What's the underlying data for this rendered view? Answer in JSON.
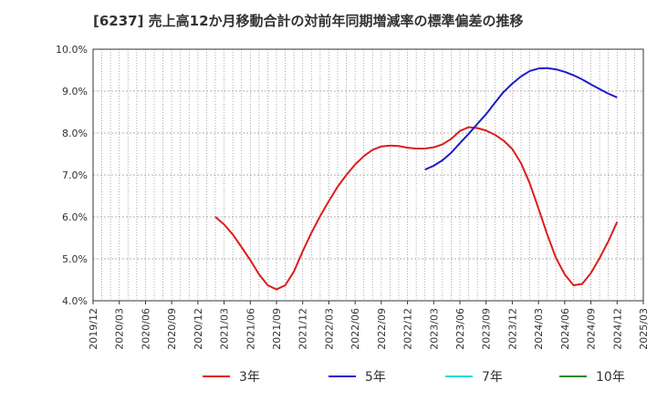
{
  "chart_data": {
    "type": "line",
    "title": "[6237]  売上高12か月移動合計の対前年同期増減率の標準偏差の推移",
    "xlabel": "",
    "ylabel": "",
    "x_ticks": [
      "2019/12",
      "2020/03",
      "2020/06",
      "2020/09",
      "2020/12",
      "2021/03",
      "2021/06",
      "2021/09",
      "2021/12",
      "2022/03",
      "2022/06",
      "2022/09",
      "2022/12",
      "2023/03",
      "2023/06",
      "2023/09",
      "2023/12",
      "2024/03",
      "2024/06",
      "2024/09",
      "2024/12",
      "2025/03"
    ],
    "y_ticks": [
      "4.0%",
      "5.0%",
      "6.0%",
      "7.0%",
      "8.0%",
      "9.0%",
      "10.0%"
    ],
    "ylim": [
      4.0,
      10.0
    ],
    "grid": true,
    "legend_position": "bottom",
    "series": [
      {
        "name": "3年",
        "color": "#dd1c1c",
        "points": [
          [
            "2021/02",
            6.0
          ],
          [
            "2021/03",
            5.82
          ],
          [
            "2021/04",
            5.58
          ],
          [
            "2021/05",
            5.28
          ],
          [
            "2021/06",
            4.97
          ],
          [
            "2021/07",
            4.63
          ],
          [
            "2021/08",
            4.37
          ],
          [
            "2021/09",
            4.27
          ],
          [
            "2021/10",
            4.37
          ],
          [
            "2021/11",
            4.7
          ],
          [
            "2021/12",
            5.18
          ],
          [
            "2022/01",
            5.62
          ],
          [
            "2022/02",
            6.02
          ],
          [
            "2022/03",
            6.38
          ],
          [
            "2022/04",
            6.72
          ],
          [
            "2022/05",
            7.0
          ],
          [
            "2022/06",
            7.25
          ],
          [
            "2022/07",
            7.45
          ],
          [
            "2022/08",
            7.6
          ],
          [
            "2022/09",
            7.68
          ],
          [
            "2022/10",
            7.7
          ],
          [
            "2022/11",
            7.69
          ],
          [
            "2022/12",
            7.65
          ],
          [
            "2023/01",
            7.63
          ],
          [
            "2023/02",
            7.63
          ],
          [
            "2023/03",
            7.66
          ],
          [
            "2023/04",
            7.73
          ],
          [
            "2023/05",
            7.86
          ],
          [
            "2023/06",
            8.05
          ],
          [
            "2023/07",
            8.14
          ],
          [
            "2023/08",
            8.12
          ],
          [
            "2023/09",
            8.06
          ],
          [
            "2023/10",
            7.96
          ],
          [
            "2023/11",
            7.82
          ],
          [
            "2023/12",
            7.62
          ],
          [
            "2024/01",
            7.28
          ],
          [
            "2024/02",
            6.8
          ],
          [
            "2024/03",
            6.2
          ],
          [
            "2024/04",
            5.58
          ],
          [
            "2024/05",
            5.02
          ],
          [
            "2024/06",
            4.63
          ],
          [
            "2024/07",
            4.37
          ],
          [
            "2024/08",
            4.4
          ],
          [
            "2024/09",
            4.66
          ],
          [
            "2024/10",
            5.02
          ],
          [
            "2024/11",
            5.42
          ],
          [
            "2024/12",
            5.88
          ]
        ]
      },
      {
        "name": "5年",
        "color": "#1c1ccc",
        "points": [
          [
            "2023/02",
            7.13
          ],
          [
            "2023/03",
            7.22
          ],
          [
            "2023/04",
            7.35
          ],
          [
            "2023/05",
            7.53
          ],
          [
            "2023/06",
            7.76
          ],
          [
            "2023/07",
            7.98
          ],
          [
            "2023/08",
            8.22
          ],
          [
            "2023/09",
            8.45
          ],
          [
            "2023/10",
            8.72
          ],
          [
            "2023/11",
            8.98
          ],
          [
            "2023/12",
            9.18
          ],
          [
            "2024/01",
            9.35
          ],
          [
            "2024/02",
            9.48
          ],
          [
            "2024/03",
            9.54
          ],
          [
            "2024/04",
            9.55
          ],
          [
            "2024/05",
            9.52
          ],
          [
            "2024/06",
            9.46
          ],
          [
            "2024/07",
            9.38
          ],
          [
            "2024/08",
            9.28
          ],
          [
            "2024/09",
            9.16
          ],
          [
            "2024/10",
            9.05
          ],
          [
            "2024/11",
            8.94
          ],
          [
            "2024/12",
            8.85
          ]
        ]
      },
      {
        "name": "7年",
        "color": "#22dddd",
        "points": []
      },
      {
        "name": "10年",
        "color": "#228822",
        "points": []
      }
    ]
  }
}
